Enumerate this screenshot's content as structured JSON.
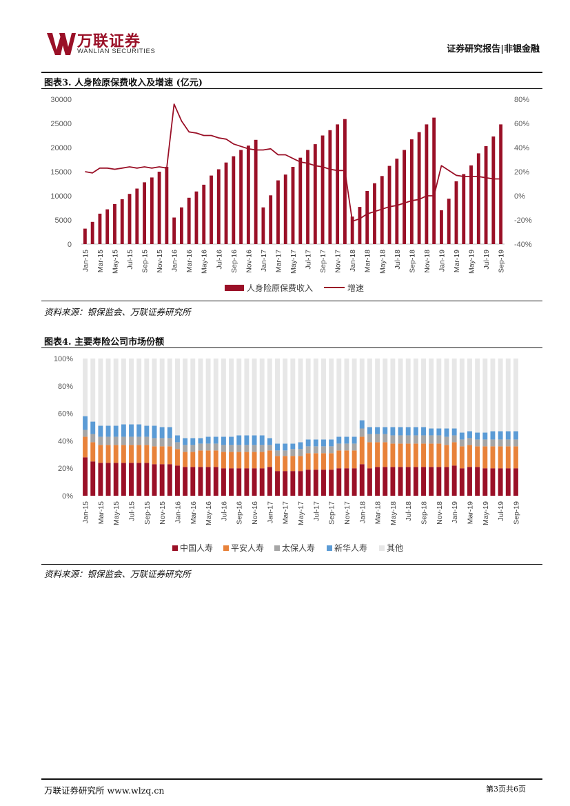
{
  "header": {
    "logo_cn": "万联证券",
    "logo_en": "WANLIAN SECURITIES",
    "right_title": "证券研究报告|非银金融"
  },
  "colors": {
    "brand": "#9a1027",
    "orange": "#e8823a",
    "gray": "#a6a6a6",
    "blue": "#5b9bd5",
    "light": "#e7e7e7"
  },
  "figure3": {
    "caption": "图表3. 人身险原保费收入及增速 (亿元)",
    "source": "资料来源：银保监会、万联证券研究所"
  },
  "figure4": {
    "caption": "图表4. 主要寿险公司市场份额",
    "source": "资料来源：银保监会、万联证券研究所"
  },
  "footer": {
    "left": "万联证券研究所 www.wlzq.cn",
    "right": "第3页共6页"
  },
  "chart_data": [
    {
      "type": "bar+line",
      "title": "人身险原保费收入及增速 (亿元)",
      "categories": [
        "Jan-15",
        "Feb-15",
        "Mar-15",
        "Apr-15",
        "May-15",
        "Jun-15",
        "Jul-15",
        "Aug-15",
        "Sep-15",
        "Oct-15",
        "Nov-15",
        "Dec-15",
        "Jan-16",
        "Feb-16",
        "Mar-16",
        "Apr-16",
        "May-16",
        "Jun-16",
        "Jul-16",
        "Aug-16",
        "Sep-16",
        "Oct-16",
        "Nov-16",
        "Dec-16",
        "Jan-17",
        "Feb-17",
        "Mar-17",
        "Apr-17",
        "May-17",
        "Jun-17",
        "Jul-17",
        "Aug-17",
        "Sep-17",
        "Oct-17",
        "Nov-17",
        "Dec-17",
        "Jan-18",
        "Feb-18",
        "Mar-18",
        "Apr-18",
        "May-18",
        "Jun-18",
        "Jul-18",
        "Aug-18",
        "Sep-18",
        "Oct-18",
        "Nov-18",
        "Dec-18",
        "Jan-19",
        "Feb-19",
        "Mar-19",
        "Apr-19",
        "May-19",
        "Jun-19",
        "Jul-19",
        "Aug-19",
        "Sep-19"
      ],
      "tick_labels": [
        "Jan-15",
        "Mar-15",
        "May-15",
        "Jul-15",
        "Sep-15",
        "Nov-15",
        "Jan-16",
        "Mar-16",
        "May-16",
        "Jul-16",
        "Sep-16",
        "Nov-16",
        "Jan-17",
        "Mar-17",
        "May-17",
        "Jul-17",
        "Sep-17",
        "Nov-17",
        "Jan-18",
        "Mar-18",
        "May-18",
        "Jul-18",
        "Sep-18",
        "Nov-18",
        "Jan-19",
        "Mar-19",
        "May-19",
        "Jul-19",
        "Sep-19"
      ],
      "series": [
        {
          "name": "人身险原保费收入",
          "axis": "left",
          "kind": "bar",
          "values": [
            3200,
            4600,
            6300,
            7200,
            8300,
            9300,
            10400,
            11500,
            12800,
            13800,
            15000,
            16000,
            5500,
            7600,
            9600,
            10900,
            12300,
            14200,
            15500,
            16900,
            18200,
            19500,
            20400,
            21600,
            7600,
            10100,
            13200,
            14400,
            16000,
            17900,
            19500,
            20700,
            22500,
            23600,
            24800,
            25900,
            5700,
            7700,
            11000,
            12600,
            14100,
            16200,
            17700,
            19500,
            21700,
            23200,
            24800,
            26200,
            7000,
            9400,
            13000,
            14500,
            16300,
            18800,
            20300,
            22300,
            24800
          ]
        },
        {
          "name": "增速",
          "axis": "right",
          "kind": "line",
          "values": [
            20,
            19,
            23,
            23,
            22,
            23,
            24,
            23,
            24,
            23,
            24,
            23,
            76,
            62,
            53,
            52,
            50,
            50,
            48,
            47,
            43,
            41,
            39,
            38,
            38,
            39,
            34,
            34,
            31,
            28,
            27,
            25,
            24,
            22,
            21,
            21,
            -21,
            -19,
            -15,
            -13,
            -11,
            -9,
            -8,
            -6,
            -4,
            -3,
            0,
            0,
            25,
            21,
            17,
            16,
            16,
            16,
            15,
            14,
            14
          ]
        }
      ],
      "left_axis": {
        "ylim": [
          0,
          30000
        ],
        "ticks": [
          "0",
          "5000",
          "10000",
          "15000",
          "20000",
          "25000",
          "30000"
        ]
      },
      "right_axis": {
        "ylim": [
          -40,
          80
        ],
        "ticks": [
          "-40%",
          "-20%",
          "0%",
          "20%",
          "40%",
          "60%",
          "80%"
        ]
      },
      "legend": [
        "人身险原保费收入",
        "增速"
      ]
    },
    {
      "type": "stacked-bar",
      "title": "主要寿险公司市场份额",
      "categories": [
        "Jan-15",
        "Feb-15",
        "Mar-15",
        "Apr-15",
        "May-15",
        "Jun-15",
        "Jul-15",
        "Aug-15",
        "Sep-15",
        "Oct-15",
        "Nov-15",
        "Dec-15",
        "Jan-16",
        "Feb-16",
        "Mar-16",
        "Apr-16",
        "May-16",
        "Jun-16",
        "Jul-16",
        "Aug-16",
        "Sep-16",
        "Oct-16",
        "Nov-16",
        "Dec-16",
        "Jan-17",
        "Feb-17",
        "Mar-17",
        "Apr-17",
        "May-17",
        "Jun-17",
        "Jul-17",
        "Aug-17",
        "Sep-17",
        "Oct-17",
        "Nov-17",
        "Dec-17",
        "Jan-18",
        "Feb-18",
        "Mar-18",
        "Apr-18",
        "May-18",
        "Jun-18",
        "Jul-18",
        "Aug-18",
        "Sep-18",
        "Oct-18",
        "Nov-18",
        "Dec-18",
        "Jan-19",
        "Feb-19",
        "Mar-19",
        "Apr-19",
        "May-19",
        "Jun-19",
        "Jul-19",
        "Aug-19",
        "Sep-19"
      ],
      "tick_labels": [
        "Jan-15",
        "Mar-15",
        "May-15",
        "Jul-15",
        "Sep-15",
        "Nov-15",
        "Jan-16",
        "Mar-16",
        "May-16",
        "Jul-16",
        "Sep-16",
        "Nov-16",
        "Jan-17",
        "Mar-17",
        "May-17",
        "Jul-17",
        "Sep-17",
        "Nov-17",
        "Jan-18",
        "Mar-18",
        "May-18",
        "Jul-18",
        "Sep-18",
        "Nov-18",
        "Jan-19",
        "Mar-19",
        "May-19",
        "Jul-19",
        "Sep-19"
      ],
      "series": [
        {
          "name": "中国人寿",
          "values": [
            28,
            25,
            24,
            24,
            24,
            24,
            24,
            24,
            24,
            23,
            23,
            23,
            22,
            21,
            21,
            21,
            21,
            21,
            20,
            20,
            20,
            20,
            20,
            20,
            21,
            18,
            18,
            18,
            18,
            19,
            19,
            19,
            19,
            20,
            20,
            20,
            23,
            20,
            21,
            21,
            21,
            21,
            21,
            21,
            21,
            21,
            21,
            21,
            22,
            20,
            21,
            21,
            20,
            20,
            20,
            20,
            20
          ]
        },
        {
          "name": "平安人寿",
          "values": [
            15,
            14,
            13,
            13,
            13,
            13,
            13,
            13,
            13,
            13,
            13,
            13,
            12,
            11,
            11,
            12,
            12,
            12,
            12,
            12,
            12,
            12,
            12,
            12,
            12,
            11,
            11,
            11,
            11,
            12,
            12,
            12,
            12,
            13,
            13,
            13,
            20,
            19,
            18,
            18,
            17,
            17,
            17,
            17,
            17,
            17,
            17,
            16,
            17,
            16,
            16,
            15,
            16,
            16,
            16,
            16,
            16
          ]
        },
        {
          "name": "太保人寿",
          "values": [
            5,
            6,
            6,
            6,
            6,
            6,
            6,
            6,
            6,
            6,
            6,
            6,
            5,
            5,
            5,
            5,
            5,
            5,
            5,
            5,
            5,
            5,
            5,
            5,
            4,
            4,
            4,
            5,
            5,
            5,
            5,
            5,
            5,
            5,
            5,
            5,
            6,
            6,
            6,
            6,
            6,
            6,
            6,
            6,
            6,
            6,
            6,
            6,
            5,
            5,
            5,
            5,
            5,
            5,
            5,
            5,
            5
          ]
        },
        {
          "name": "新华人寿",
          "values": [
            10,
            9,
            8,
            8,
            8,
            9,
            9,
            9,
            8,
            9,
            8,
            8,
            5,
            5,
            5,
            4,
            5,
            5,
            6,
            6,
            7,
            7,
            7,
            7,
            5,
            5,
            5,
            4,
            5,
            5,
            5,
            5,
            5,
            5,
            5,
            5,
            6,
            5,
            5,
            5,
            6,
            6,
            6,
            6,
            6,
            5,
            5,
            6,
            5,
            5,
            5,
            5,
            5,
            6,
            6,
            6,
            6
          ]
        },
        {
          "name": "其他",
          "values": [
            42,
            46,
            49,
            49,
            49,
            48,
            48,
            48,
            49,
            49,
            50,
            50,
            56,
            58,
            58,
            58,
            57,
            57,
            57,
            57,
            56,
            56,
            56,
            56,
            58,
            62,
            62,
            62,
            61,
            59,
            59,
            59,
            59,
            57,
            57,
            57,
            45,
            50,
            50,
            50,
            50,
            50,
            50,
            50,
            50,
            51,
            51,
            51,
            51,
            54,
            53,
            54,
            54,
            53,
            53,
            53,
            53
          ]
        }
      ],
      "yaxis": {
        "ylim": [
          0,
          100
        ],
        "ticks": [
          "0%",
          "20%",
          "40%",
          "60%",
          "80%",
          "100%"
        ]
      },
      "legend": [
        "中国人寿",
        "平安人寿",
        "太保人寿",
        "新华人寿",
        "其他"
      ]
    }
  ]
}
